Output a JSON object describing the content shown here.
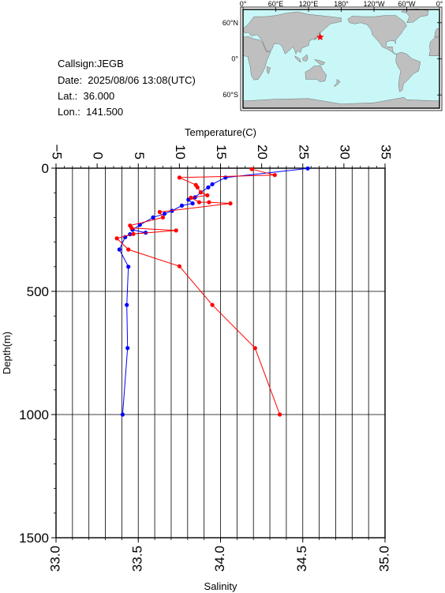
{
  "station": {
    "callsign": "Callsign:JEGB",
    "date": "Date:  2025/08/06 13:08(UTC)",
    "lat": "Lat.:  36.000",
    "lon": "Lon.:  141.500"
  },
  "map": {
    "top_labels": [
      "0°",
      "60°E",
      "120°E",
      "180°",
      "120°W",
      "60°W",
      "0°"
    ],
    "right_labels": [
      "60°N",
      "0°",
      "60°S"
    ],
    "land_color": "#bfbfbf",
    "ocean_color": "#c9f7f7",
    "marker_color": "#ff0000",
    "marker": {
      "lon": 141.5,
      "lat": 36.0
    }
  },
  "chart_data": {
    "type": "line",
    "ylabel": "Depth(m)",
    "top_axis_label": "Temperature(C)",
    "bottom_axis_label": "Salinity",
    "ylim": [
      0,
      1500
    ],
    "y_ticks": [
      0,
      500,
      1000,
      1500
    ],
    "temperature_range": [
      -5,
      35
    ],
    "temperature_ticks": [
      -5,
      0,
      5,
      10,
      15,
      20,
      25,
      30,
      35
    ],
    "salinity_range": [
      33.0,
      35.0
    ],
    "salinity_ticks": [
      "33.0",
      "33.5",
      "34.0",
      "34.5",
      "35.0"
    ],
    "grid": true,
    "series": [
      {
        "axis": "temperature",
        "color": "#0000ff",
        "points": [
          {
            "depth": 1,
            "value": 25.6
          },
          {
            "depth": 38,
            "value": 15.6
          },
          {
            "depth": 65,
            "value": 14.0
          },
          {
            "depth": 78,
            "value": 13.5
          },
          {
            "depth": 98,
            "value": 12.6
          },
          {
            "depth": 118,
            "value": 11.9
          },
          {
            "depth": 128,
            "value": 11.1
          },
          {
            "depth": 143,
            "value": 11.6
          },
          {
            "depth": 152,
            "value": 10.3
          },
          {
            "depth": 173,
            "value": 9.1
          },
          {
            "depth": 185,
            "value": 8.2
          },
          {
            "depth": 200,
            "value": 6.8
          },
          {
            "depth": 230,
            "value": 5.2
          },
          {
            "depth": 250,
            "value": 4.3
          },
          {
            "depth": 262,
            "value": 5.9
          },
          {
            "depth": 268,
            "value": 4.0
          },
          {
            "depth": 280,
            "value": 3.4
          },
          {
            "depth": 330,
            "value": 2.7
          },
          {
            "depth": 400,
            "value": 3.8
          },
          {
            "depth": 555,
            "value": 3.6
          },
          {
            "depth": 730,
            "value": 3.7
          },
          {
            "depth": 1000,
            "value": 3.1
          }
        ]
      },
      {
        "axis": "salinity",
        "color": "#ff0000",
        "points": [
          {
            "depth": 4,
            "value": 34.19
          },
          {
            "depth": 28,
            "value": 34.33
          },
          {
            "depth": 38,
            "value": 33.75
          },
          {
            "depth": 68,
            "value": 33.85
          },
          {
            "depth": 78,
            "value": 33.86
          },
          {
            "depth": 98,
            "value": 33.88
          },
          {
            "depth": 110,
            "value": 33.92
          },
          {
            "depth": 120,
            "value": 33.82
          },
          {
            "depth": 138,
            "value": 33.87
          },
          {
            "depth": 138,
            "value": 33.93
          },
          {
            "depth": 143,
            "value": 34.06
          },
          {
            "depth": 178,
            "value": 33.63
          },
          {
            "depth": 200,
            "value": 33.65
          },
          {
            "depth": 233,
            "value": 33.45
          },
          {
            "depth": 243,
            "value": 33.46
          },
          {
            "depth": 253,
            "value": 33.73
          },
          {
            "depth": 267,
            "value": 33.47
          },
          {
            "depth": 285,
            "value": 33.37
          },
          {
            "depth": 330,
            "value": 33.44
          },
          {
            "depth": 398,
            "value": 33.75
          },
          {
            "depth": 555,
            "value": 33.95
          },
          {
            "depth": 730,
            "value": 34.21
          },
          {
            "depth": 1000,
            "value": 34.36
          }
        ]
      }
    ]
  }
}
